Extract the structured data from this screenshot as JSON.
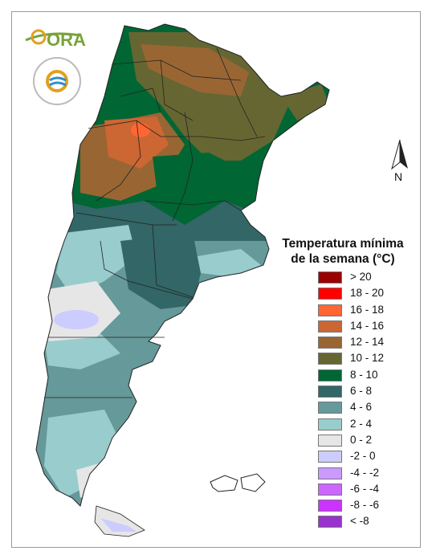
{
  "legend": {
    "title_line1": "Temperatura mínima",
    "title_line2": "de la semana (°C)",
    "items": [
      {
        "label": "> 20",
        "color": "#990000"
      },
      {
        "label": "18 - 20",
        "color": "#ff0000"
      },
      {
        "label": "16 - 18",
        "color": "#ff6633"
      },
      {
        "label": "14 - 16",
        "color": "#cc6633"
      },
      {
        "label": "12 - 14",
        "color": "#996633"
      },
      {
        "label": "10 - 12",
        "color": "#666633"
      },
      {
        "label": "8 - 10",
        "color": "#006633"
      },
      {
        "label": "6 - 8",
        "color": "#336666"
      },
      {
        "label": "4 - 6",
        "color": "#669999"
      },
      {
        "label": "2 - 4",
        "color": "#99cccc"
      },
      {
        "label": "0 - 2",
        "color": "#e6e6e6"
      },
      {
        "label": "-2 - 0",
        "color": "#ccccff"
      },
      {
        "label": "-4 - -2",
        "color": "#cc99ff"
      },
      {
        "label": "-6 - -4",
        "color": "#cc66ff"
      },
      {
        "label": "-8 - -6",
        "color": "#cc33ff"
      },
      {
        "label": "< -8",
        "color": "#9933cc"
      }
    ]
  },
  "logos": {
    "ora_text": "ORA"
  },
  "north_label": "N",
  "colors": {
    "ora_green": "#7aa33a",
    "ora_gold": "#e0a020",
    "smn_blue": "#2d8fc9"
  }
}
